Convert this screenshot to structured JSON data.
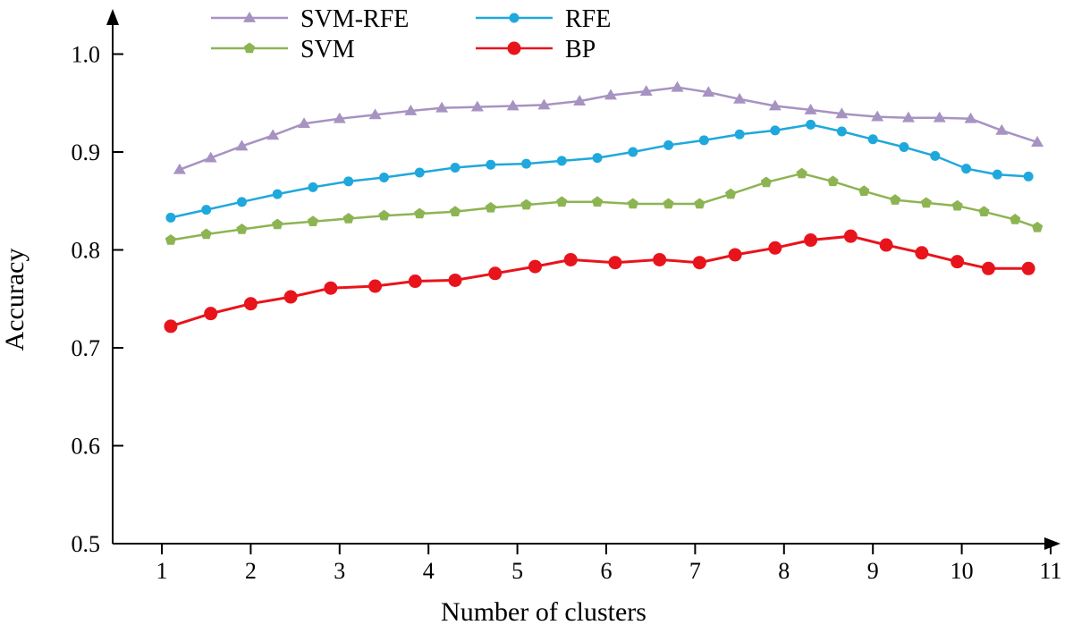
{
  "chart_data": {
    "type": "line",
    "title": "",
    "xlabel": "Number of clusters",
    "ylabel": "Accuracy",
    "xlim": [
      0.55,
      11.0
    ],
    "ylim": [
      0.5,
      1.05
    ],
    "x_ticks": [
      1,
      2,
      3,
      4,
      5,
      6,
      7,
      8,
      9,
      10,
      11
    ],
    "x_tick_labels": [
      "1",
      "2",
      "3",
      "4",
      "5",
      "6",
      "7",
      "8",
      "9",
      "10",
      "11"
    ],
    "y_ticks": [
      0.5,
      0.6,
      0.7,
      0.8,
      0.9,
      1.0
    ],
    "y_tick_labels": [
      "0.5",
      "0.6",
      "0.7",
      "0.8",
      "0.9",
      "1.0"
    ],
    "grid": false,
    "legend_position": "top-left, two columns",
    "series": [
      {
        "name": "SVM-RFE",
        "color": "#a793c2",
        "marker": "triangle",
        "x": [
          1.2,
          1.55,
          1.9,
          2.25,
          2.6,
          3.0,
          3.4,
          3.8,
          4.15,
          4.55,
          4.95,
          5.3,
          5.7,
          6.05,
          6.45,
          6.8,
          7.15,
          7.5,
          7.9,
          8.3,
          8.65,
          9.05,
          9.4,
          9.75,
          10.1,
          10.45,
          10.85
        ],
        "y": [
          0.882,
          0.894,
          0.906,
          0.917,
          0.929,
          0.934,
          0.938,
          0.942,
          0.945,
          0.946,
          0.947,
          0.948,
          0.952,
          0.958,
          0.962,
          0.966,
          0.961,
          0.954,
          0.947,
          0.943,
          0.939,
          0.936,
          0.935,
          0.935,
          0.934,
          0.922,
          0.91
        ]
      },
      {
        "name": "RFE",
        "color": "#1fa8dc",
        "marker": "circle",
        "x": [
          1.1,
          1.5,
          1.9,
          2.3,
          2.7,
          3.1,
          3.5,
          3.9,
          4.3,
          4.7,
          5.1,
          5.5,
          5.9,
          6.3,
          6.7,
          7.1,
          7.5,
          7.9,
          8.3,
          8.65,
          9.0,
          9.35,
          9.7,
          10.05,
          10.4,
          10.75
        ],
        "y": [
          0.833,
          0.841,
          0.849,
          0.857,
          0.864,
          0.87,
          0.874,
          0.879,
          0.884,
          0.887,
          0.888,
          0.891,
          0.894,
          0.9,
          0.907,
          0.912,
          0.918,
          0.922,
          0.928,
          0.921,
          0.913,
          0.905,
          0.896,
          0.883,
          0.877,
          0.875
        ]
      },
      {
        "name": "SVM",
        "color": "#8db453",
        "marker": "pentagon",
        "x": [
          1.1,
          1.5,
          1.9,
          2.3,
          2.7,
          3.1,
          3.5,
          3.9,
          4.3,
          4.7,
          5.1,
          5.5,
          5.9,
          6.3,
          6.7,
          7.05,
          7.4,
          7.8,
          8.2,
          8.55,
          8.9,
          9.25,
          9.6,
          9.95,
          10.25,
          10.6,
          10.85
        ],
        "y": [
          0.81,
          0.816,
          0.821,
          0.826,
          0.829,
          0.832,
          0.835,
          0.837,
          0.839,
          0.843,
          0.846,
          0.849,
          0.849,
          0.847,
          0.847,
          0.847,
          0.857,
          0.869,
          0.878,
          0.87,
          0.86,
          0.851,
          0.848,
          0.845,
          0.839,
          0.831,
          0.823
        ]
      },
      {
        "name": "BP",
        "color": "#e8141c",
        "marker": "circle",
        "x": [
          1.1,
          1.55,
          2.0,
          2.45,
          2.9,
          3.4,
          3.85,
          4.3,
          4.75,
          5.2,
          5.6,
          6.1,
          6.6,
          7.05,
          7.45,
          7.9,
          8.3,
          8.75,
          9.15,
          9.55,
          9.95,
          10.3,
          10.75
        ],
        "y": [
          0.722,
          0.735,
          0.745,
          0.752,
          0.761,
          0.763,
          0.768,
          0.769,
          0.776,
          0.783,
          0.79,
          0.787,
          0.79,
          0.787,
          0.795,
          0.802,
          0.81,
          0.814,
          0.805,
          0.797,
          0.788,
          0.781,
          0.781
        ]
      }
    ]
  }
}
